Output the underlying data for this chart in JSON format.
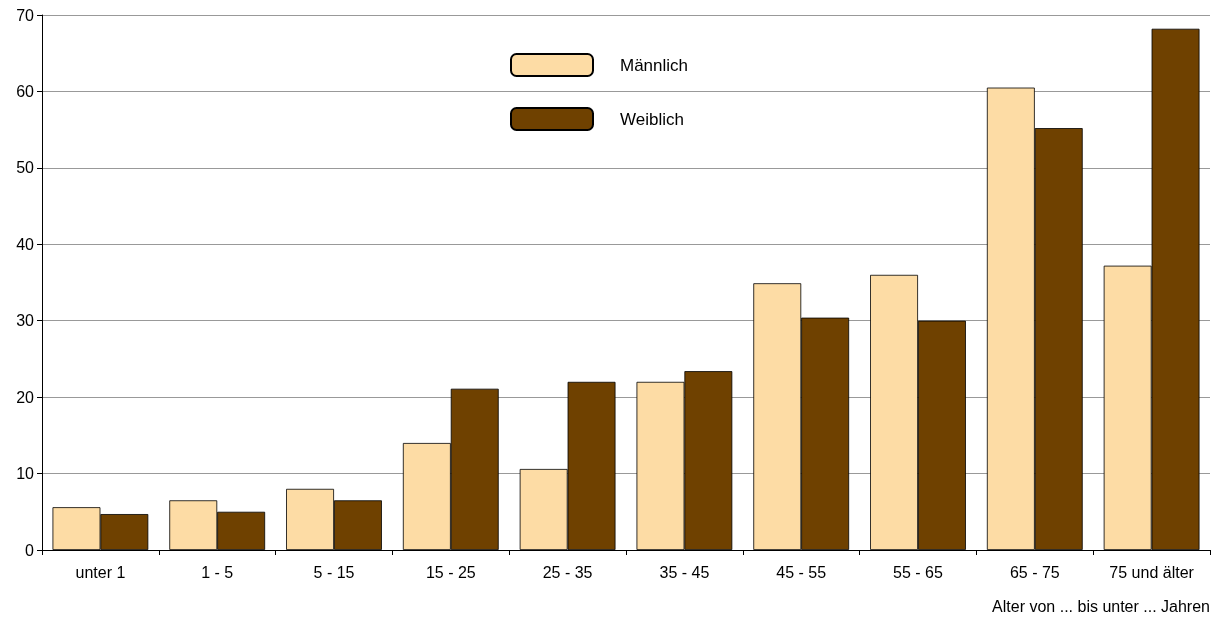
{
  "chart_data": {
    "type": "bar",
    "xlabel": "Alter von ... bis unter ... Jahren",
    "categories": [
      "unter 1",
      "1 - 5",
      "5 - 15",
      "15 - 25",
      "25 - 35",
      "35 - 45",
      "45 - 55",
      "55 - 65",
      "65 - 75",
      "75 und älter"
    ],
    "series": [
      {
        "name": "Männlich",
        "color": "#fddca5",
        "values": [
          5.6,
          6.5,
          8.0,
          14.0,
          10.6,
          22.0,
          34.9,
          36.0,
          60.5,
          37.2
        ]
      },
      {
        "name": "Weiblich",
        "color": "#6f4100",
        "values": [
          4.7,
          5.0,
          6.5,
          21.1,
          22.0,
          23.4,
          30.4,
          30.0,
          55.2,
          68.2
        ]
      }
    ],
    "ylim": [
      0,
      70
    ],
    "yticks": [
      0,
      10,
      20,
      30,
      40,
      50,
      60,
      70
    ],
    "grid": "y",
    "legend": "top"
  }
}
